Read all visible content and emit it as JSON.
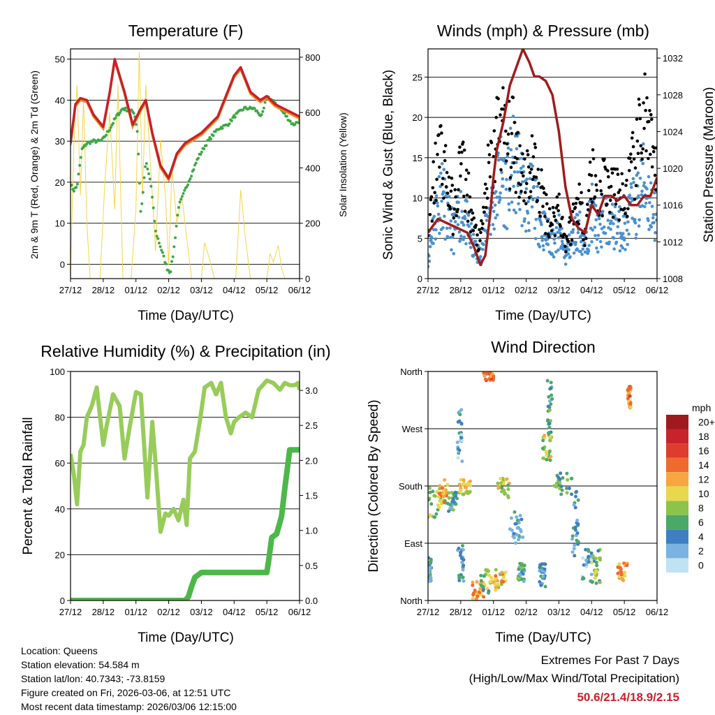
{
  "colors": {
    "temp_red": "#c8202a",
    "temp_orange": "#f08a1e",
    "dewpoint_green": "#3da843",
    "solar_yellow": "#f5d547",
    "wind_blue": "#4a90d0",
    "gust_black": "#000000",
    "pressure_maroon": "#a01c1c",
    "rh_green": "#98cc5a",
    "precip_green": "#4cb848",
    "extremes_red": "#cc1f2a"
  },
  "chart_data": [
    {
      "type": "line",
      "id": "temperature",
      "title": "Temperature (F)",
      "xlabel": "Time (Day/UTC)",
      "ylabel": "2m & 9m T (Red, Orange) & 2m Td (Green)",
      "ylabel_right": "Solar Insolation (Yellow)",
      "x_ticks": [
        "27/12",
        "28/12",
        "01/12",
        "02/12",
        "03/12",
        "04/12",
        "05/12",
        "06/12"
      ],
      "xlim": [
        0,
        7
      ],
      "ylim": [
        -3.5,
        52.5
      ],
      "y_ticks": [
        0,
        10,
        20,
        30,
        40,
        50
      ],
      "y2lim": [
        0,
        830
      ],
      "y2_ticks": [
        0,
        200,
        400,
        600,
        800
      ],
      "series": [
        {
          "name": "2m T",
          "color": "#c8202a",
          "x": [
            0,
            0.15,
            0.3,
            0.5,
            0.7,
            1.0,
            1.2,
            1.35,
            1.5,
            1.65,
            1.9,
            2.15,
            2.3,
            2.5,
            2.75,
            3.0,
            3.25,
            3.5,
            4.0,
            4.25,
            4.5,
            4.7,
            5.0,
            5.2,
            5.5,
            5.8,
            6.0,
            6.25,
            6.5,
            6.75,
            7.0
          ],
          "y": [
            29.5,
            39,
            40.5,
            40,
            36.5,
            33.5,
            42,
            50,
            46,
            42,
            34,
            38,
            40,
            32,
            24,
            21,
            27,
            29.5,
            32,
            34,
            36,
            40,
            46,
            48,
            42,
            40,
            41,
            39,
            38,
            37,
            36
          ]
        },
        {
          "name": "2m Td",
          "color": "#3da843",
          "x": [
            0,
            0.1,
            0.2,
            0.35,
            0.5,
            0.7,
            0.9,
            1.0,
            1.2,
            1.4,
            1.6,
            1.8,
            1.95,
            2.05,
            2.15,
            2.3,
            2.45,
            2.6,
            2.8,
            2.95,
            3.05,
            3.15,
            3.3,
            3.6,
            3.9,
            4.2,
            4.5,
            4.8,
            5.0,
            5.3,
            5.6,
            5.85,
            6.0,
            6.3,
            6.6,
            6.8,
            7.0
          ],
          "y": [
            19.5,
            18,
            19,
            28,
            29.5,
            30,
            30,
            30.5,
            33,
            36,
            38,
            37.5,
            37,
            32,
            12,
            25,
            20,
            8,
            3,
            -1,
            -2,
            3,
            14,
            20,
            26,
            30,
            33,
            34,
            36,
            38,
            38,
            36,
            41,
            39,
            36,
            34,
            35
          ]
        },
        {
          "name": "Solar",
          "color": "#f5d547",
          "axis": "y2",
          "x": [
            0,
            0.1,
            0.2,
            0.3,
            0.4,
            0.5,
            0.6,
            0.9,
            1.05,
            1.2,
            1.35,
            1.45,
            1.6,
            1.85,
            2.0,
            2.1,
            2.2,
            2.3,
            2.45,
            2.6,
            2.75,
            2.9,
            3.0,
            3.1,
            3.25,
            3.4,
            3.55,
            3.7,
            3.9,
            4.0,
            4.1,
            4.25,
            4.4,
            4.6,
            4.9,
            5.05,
            5.2,
            5.35,
            5.5,
            5.8,
            6.0,
            6.1,
            6.2,
            6.35,
            6.45,
            6.55,
            7.0
          ],
          "y": [
            0,
            480,
            700,
            300,
            650,
            200,
            0,
            0,
            350,
            600,
            250,
            700,
            0,
            0,
            250,
            820,
            300,
            700,
            400,
            100,
            500,
            300,
            50,
            400,
            200,
            300,
            150,
            0,
            0,
            0,
            130,
            70,
            0,
            0,
            0,
            0,
            320,
            140,
            0,
            0,
            0,
            90,
            60,
            120,
            40,
            0,
            0
          ]
        }
      ]
    },
    {
      "type": "scatter",
      "id": "winds",
      "title": "Winds (mph) & Pressure (mb)",
      "xlabel": "Time (Day/UTC)",
      "ylabel": "Sonic Wind & Gust (Blue, Black)",
      "ylabel_right": "Station Pressure (Maroon)",
      "x_ticks": [
        "27/12",
        "28/12",
        "01/12",
        "02/12",
        "03/12",
        "04/12",
        "05/12",
        "06/12"
      ],
      "xlim": [
        0,
        7
      ],
      "ylim": [
        0,
        28.5
      ],
      "y_ticks": [
        0,
        5,
        10,
        15,
        20,
        25
      ],
      "y2lim": [
        1008,
        1033
      ],
      "y2_ticks": [
        1008,
        1012,
        1016,
        1020,
        1024,
        1028,
        1032
      ],
      "series": [
        {
          "name": "Sonic Wind",
          "color": "#4a90d0",
          "x": [
            0,
            0.2,
            0.4,
            0.6,
            0.8,
            1.0,
            1.2,
            1.4,
            1.6,
            1.8,
            2.0,
            2.2,
            2.4,
            2.6,
            2.8,
            3.0,
            3.2,
            3.4,
            3.6,
            3.8,
            4.0,
            4.2,
            4.4,
            4.6,
            4.8,
            5.0,
            5.2,
            5.4,
            5.6,
            5.8,
            6.0,
            6.2,
            6.4,
            6.6,
            6.8,
            7.0
          ],
          "y": [
            3,
            8,
            12,
            8,
            6,
            9,
            7,
            4,
            3,
            8,
            10,
            14,
            12,
            15,
            14,
            10,
            11,
            8,
            6,
            5,
            6,
            3,
            5,
            7,
            4,
            9,
            6,
            8,
            7,
            7,
            6,
            9,
            10,
            13,
            10,
            8
          ]
        },
        {
          "name": "Gust",
          "color": "#000000",
          "x": [
            0,
            0.2,
            0.4,
            0.6,
            0.8,
            1.0,
            1.2,
            1.4,
            1.6,
            1.8,
            2.0,
            2.2,
            2.4,
            2.6,
            2.8,
            3.0,
            3.2,
            3.4,
            3.6,
            3.8,
            4.0,
            4.2,
            4.4,
            4.6,
            4.8,
            5.0,
            5.2,
            5.4,
            5.6,
            5.8,
            6.0,
            6.2,
            6.4,
            6.6,
            6.8,
            7.0
          ],
          "y": [
            5,
            15,
            19,
            14,
            9,
            17,
            13,
            7,
            5,
            14,
            17,
            24,
            19,
            20,
            17,
            15,
            17,
            13,
            10,
            8,
            11,
            5,
            8,
            12,
            7,
            16,
            11,
            15,
            12,
            13,
            11,
            15,
            18,
            25,
            18,
            14
          ]
        },
        {
          "name": "Pressure",
          "color": "#a01c1c",
          "axis": "y2",
          "x": [
            0,
            0.3,
            0.6,
            0.9,
            1.2,
            1.4,
            1.6,
            1.75,
            1.9,
            2.0,
            2.1,
            2.3,
            2.5,
            2.7,
            2.9,
            3.1,
            3.25,
            3.4,
            3.6,
            3.8,
            4.0,
            4.2,
            4.4,
            4.6,
            4.8,
            5.0,
            5.2,
            5.4,
            5.6,
            5.8,
            6.0,
            6.2,
            6.4,
            6.6,
            6.8,
            7.0
          ],
          "y": [
            1013,
            1014.5,
            1014,
            1013.5,
            1013,
            1011.5,
            1009.5,
            1010.5,
            1015,
            1019,
            1022,
            1025,
            1029,
            1031,
            1033,
            1031.5,
            1030,
            1030,
            1029.5,
            1028,
            1024,
            1018,
            1014.5,
            1013.5,
            1013,
            1016,
            1015,
            1017,
            1017,
            1016.5,
            1017,
            1016,
            1016,
            1017,
            1017,
            1019
          ]
        }
      ]
    },
    {
      "type": "line",
      "id": "humidity",
      "title": "Relative Humidity (%) & Precipitation (in)",
      "xlabel": "Time (Day/UTC)",
      "ylabel": "Percent & Total Rainfall",
      "x_ticks": [
        "27/12",
        "28/12",
        "01/12",
        "02/12",
        "03/12",
        "04/12",
        "05/12",
        "06/12"
      ],
      "xlim": [
        0,
        7
      ],
      "ylim": [
        0,
        100
      ],
      "y_ticks": [
        0,
        20,
        40,
        60,
        80,
        100
      ],
      "y2lim": [
        0,
        3.27
      ],
      "y2_ticks": [
        "0.0",
        "0.5",
        "1.0",
        "1.5",
        "2.0",
        "2.5",
        "3.0"
      ],
      "series": [
        {
          "name": "RH",
          "color": "#98cc5a",
          "x": [
            0,
            0.1,
            0.2,
            0.3,
            0.4,
            0.5,
            0.65,
            0.8,
            1.0,
            1.1,
            1.3,
            1.5,
            1.65,
            1.8,
            2.0,
            2.15,
            2.25,
            2.35,
            2.5,
            2.6,
            2.75,
            2.9,
            3.0,
            3.15,
            3.3,
            3.45,
            3.55,
            3.65,
            3.8,
            3.95,
            4.1,
            4.3,
            4.45,
            4.6,
            4.75,
            4.9,
            5.0,
            5.15,
            5.35,
            5.55,
            5.75,
            6.0,
            6.2,
            6.4,
            6.55,
            6.7,
            6.85,
            6.95,
            7.0
          ],
          "y": [
            64,
            55,
            42,
            65,
            68,
            80,
            85,
            93,
            68,
            76,
            90,
            85,
            62,
            75,
            91,
            90,
            68,
            45,
            78,
            60,
            30,
            38,
            37,
            40,
            35,
            44,
            33,
            62,
            65,
            78,
            93,
            95,
            90,
            95,
            80,
            73,
            78,
            80,
            82,
            80,
            92,
            96,
            95,
            92,
            95,
            94,
            94,
            95,
            92
          ]
        },
        {
          "name": "Precip",
          "color": "#4cb848",
          "axis": "y2",
          "x": [
            0,
            3.5,
            3.6,
            3.7,
            3.8,
            4.0,
            4.5,
            5.0,
            5.5,
            6.0,
            6.05,
            6.15,
            6.3,
            6.45,
            6.55,
            6.7,
            6.8,
            6.9,
            7.0
          ],
          "y": [
            0,
            0,
            0.05,
            0.2,
            0.33,
            0.4,
            0.4,
            0.4,
            0.4,
            0.4,
            0.55,
            0.9,
            0.95,
            1.2,
            1.6,
            2.15,
            2.15,
            2.15,
            2.15
          ]
        }
      ]
    },
    {
      "type": "scatter",
      "id": "wind_direction",
      "title": "Wind Direction",
      "xlabel": "Time (Day/UTC)",
      "ylabel": "Direction (Colored By Speed)",
      "x_ticks": [
        "27/12",
        "28/12",
        "01/12",
        "02/12",
        "03/12",
        "04/12",
        "05/12",
        "06/12"
      ],
      "xlim": [
        0,
        7
      ],
      "ylim": [
        0,
        360
      ],
      "y_ticks": [
        "North",
        "East",
        "South",
        "West",
        "North"
      ],
      "colorbar": {
        "unit": "mph",
        "labels": [
          "20+",
          "18",
          "16",
          "14",
          "12",
          "10",
          "8",
          "6",
          "4",
          "2",
          "0"
        ],
        "colors": [
          "#9e1a1e",
          "#c8232b",
          "#de3c2e",
          "#f06a2e",
          "#f8a640",
          "#e8d84e",
          "#8cc34a",
          "#4aa86a",
          "#3f7fc0",
          "#7ab2e0",
          "#bfe3f5"
        ]
      },
      "clusters": [
        {
          "x": [
            0.0,
            0.55
          ],
          "y": [
            130,
            180
          ],
          "speed": 8
        },
        {
          "x": [
            0.3,
            0.6
          ],
          "y": [
            150,
            190
          ],
          "speed": 12
        },
        {
          "x": [
            0.6,
            0.9
          ],
          "y": [
            140,
            170
          ],
          "speed": 5
        },
        {
          "x": [
            0.0,
            0.1
          ],
          "y": [
            30,
            70
          ],
          "speed": 4
        },
        {
          "x": [
            0.9,
            1.05
          ],
          "y": [
            210,
            300
          ],
          "speed": 3
        },
        {
          "x": [
            0.95,
            1.3
          ],
          "y": [
            165,
            190
          ],
          "speed": 10
        },
        {
          "x": [
            0.9,
            1.1
          ],
          "y": [
            30,
            90
          ],
          "speed": 4
        },
        {
          "x": [
            1.35,
            1.7
          ],
          "y": [
            0,
            30
          ],
          "speed": 12
        },
        {
          "x": [
            1.6,
            2.0
          ],
          "y": [
            10,
            50
          ],
          "speed": 7
        },
        {
          "x": [
            2.0,
            2.4
          ],
          "y": [
            15,
            50
          ],
          "speed": 11
        },
        {
          "x": [
            1.7,
            2.0
          ],
          "y": [
            345,
            360
          ],
          "speed": 14
        },
        {
          "x": [
            2.1,
            2.5
          ],
          "y": [
            160,
            195
          ],
          "speed": 9
        },
        {
          "x": [
            2.5,
            2.9
          ],
          "y": [
            90,
            145
          ],
          "speed": 4
        },
        {
          "x": [
            2.75,
            2.95
          ],
          "y": [
            30,
            60
          ],
          "speed": 5
        },
        {
          "x": [
            3.5,
            3.8
          ],
          "y": [
            220,
            260
          ],
          "speed": 9
        },
        {
          "x": [
            3.65,
            3.8
          ],
          "y": [
            260,
            355
          ],
          "speed": 5
        },
        {
          "x": [
            3.85,
            4.4
          ],
          "y": [
            165,
            200
          ],
          "speed": 6
        },
        {
          "x": [
            3.4,
            3.6
          ],
          "y": [
            20,
            60
          ],
          "speed": 4
        },
        {
          "x": [
            4.4,
            4.6
          ],
          "y": [
            70,
            180
          ],
          "speed": 4
        },
        {
          "x": [
            5.0,
            5.3
          ],
          "y": [
            25,
            80
          ],
          "speed": 7
        },
        {
          "x": [
            5.8,
            6.1
          ],
          "y": [
            30,
            60
          ],
          "speed": 11
        },
        {
          "x": [
            6.1,
            6.2
          ],
          "y": [
            300,
            340
          ],
          "speed": 13
        },
        {
          "x": [
            4.7,
            5.0
          ],
          "y": [
            30,
            80
          ],
          "speed": 3
        }
      ]
    }
  ],
  "info": {
    "location": "Location: Queens",
    "elevation": "Station elevation: 54.584 m",
    "latlon": "Station lat/lon: 40.7343; -73.8159",
    "created": "Figure created on Fri, 2026-03-06, at 12:51 UTC",
    "recent": "Most recent data timestamp: 2026/03/06 12:15:00"
  },
  "extremes": {
    "title": "Extremes For Past 7 Days",
    "subtitle": "(High/Low/Max Wind/Total Precipitation)",
    "values": "50.6/21.4/18.9/2.15"
  }
}
